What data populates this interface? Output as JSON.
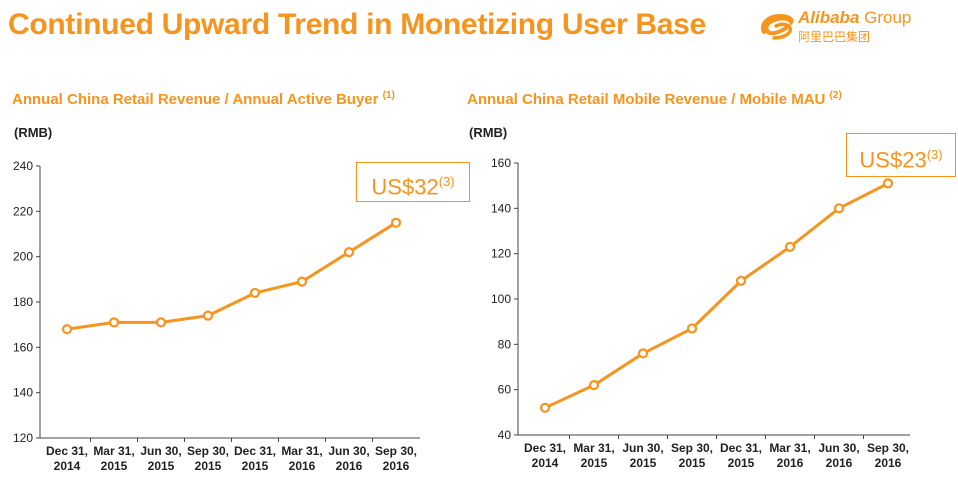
{
  "page": {
    "title": "Continued Upward Trend in Monetizing User Base"
  },
  "logo": {
    "brand": "Alibaba",
    "suffix": "Group",
    "chinese": "阿里巴巴集团",
    "color": "#f7941d"
  },
  "colors": {
    "accent": "#f7941d",
    "axis": "#444444",
    "text": "#222222"
  },
  "chart_data": [
    {
      "type": "line",
      "title": "Annual China Retail Revenue / Annual Active Buyer",
      "title_note": "(1)",
      "ylabel": "(RMB)",
      "xlabel": "",
      "categories": [
        [
          "Dec 31,",
          "2014"
        ],
        [
          "Mar 31,",
          "2015"
        ],
        [
          "Jun 30,",
          "2015"
        ],
        [
          "Sep 30,",
          "2015"
        ],
        [
          "Dec 31,",
          "2015"
        ],
        [
          "Mar 31,",
          "2016"
        ],
        [
          "Jun 30,",
          "2016"
        ],
        [
          "Sep 30,",
          "2016"
        ]
      ],
      "series": [
        {
          "name": "Annual China Retail Revenue / Annual Active Buyer",
          "values": [
            168,
            171,
            171,
            174,
            184,
            189,
            202,
            215
          ]
        }
      ],
      "ylim": [
        120,
        240
      ],
      "yticks": [
        120,
        140,
        160,
        180,
        200,
        220,
        240
      ],
      "annotation": {
        "text": "US$32",
        "note": "(3)"
      }
    },
    {
      "type": "line",
      "title": "Annual China Retail Mobile Revenue / Mobile MAU",
      "title_note": "(2)",
      "ylabel": "(RMB)",
      "xlabel": "",
      "categories": [
        [
          "Dec 31,",
          "2014"
        ],
        [
          "Mar 31,",
          "2015"
        ],
        [
          "Jun 30,",
          "2015"
        ],
        [
          "Sep 30,",
          "2015"
        ],
        [
          "Dec 31,",
          "2015"
        ],
        [
          "Mar 31,",
          "2016"
        ],
        [
          "Jun 30,",
          "2016"
        ],
        [
          "Sep 30,",
          "2016"
        ]
      ],
      "series": [
        {
          "name": "Annual China Retail Mobile Revenue / Mobile MAU",
          "values": [
            52,
            62,
            76,
            87,
            108,
            123,
            140,
            151
          ]
        }
      ],
      "ylim": [
        40,
        160
      ],
      "yticks": [
        40,
        60,
        80,
        100,
        120,
        140,
        160
      ],
      "annotation": {
        "text": "US$23",
        "note": "(3)"
      }
    }
  ]
}
